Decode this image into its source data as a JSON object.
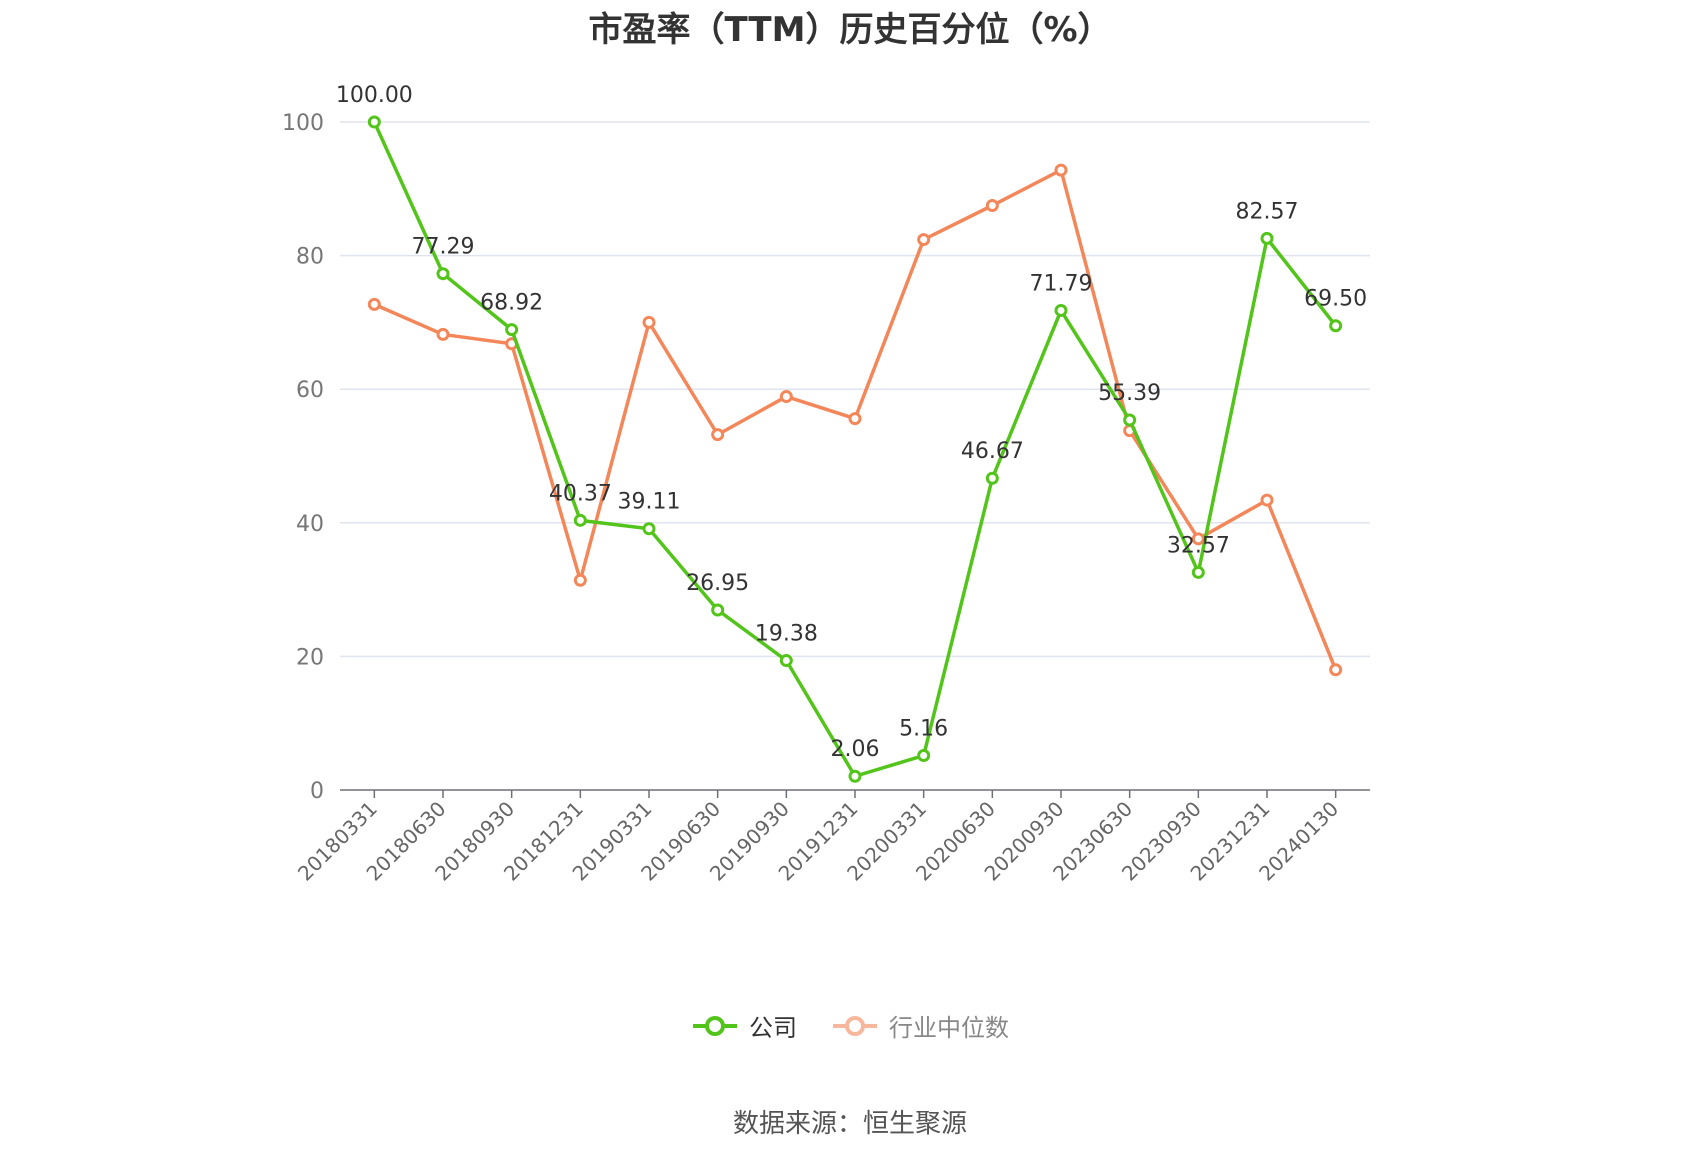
{
  "chart_data": {
    "type": "line",
    "title": "市盈率（TTM）历史百分位（%）",
    "categories": [
      "20180331",
      "20180630",
      "20180930",
      "20181231",
      "20190331",
      "20190630",
      "20190930",
      "20191231",
      "20200331",
      "20200630",
      "20200930",
      "20230630",
      "20230930",
      "20231231",
      "20240130"
    ],
    "series": [
      {
        "name": "公司",
        "color": "#52c41a",
        "values": [
          100.0,
          77.29,
          68.92,
          40.37,
          39.11,
          26.95,
          19.38,
          2.06,
          5.16,
          46.67,
          71.79,
          55.39,
          32.57,
          82.57,
          69.5
        ],
        "labels": [
          "100.00",
          "77.29",
          "68.92",
          "40.37",
          "39.11",
          "26.95",
          "19.38",
          "2.06",
          "5.16",
          "46.67",
          "71.79",
          "55.39",
          "32.57",
          "82.57",
          "69.50"
        ]
      },
      {
        "name": "行业中位数",
        "color": "#f4875a",
        "values": [
          72.7,
          68.2,
          66.8,
          31.4,
          70.0,
          53.2,
          58.9,
          55.6,
          82.4,
          87.5,
          92.8,
          53.8,
          37.6,
          43.4,
          18.0
        ]
      }
    ],
    "ylim": [
      0,
      100
    ],
    "yticks": [
      "0",
      "20",
      "40",
      "60",
      "80",
      "100"
    ],
    "grid": true,
    "legend": "bottom-center"
  },
  "source": "数据来源：恒生聚源"
}
